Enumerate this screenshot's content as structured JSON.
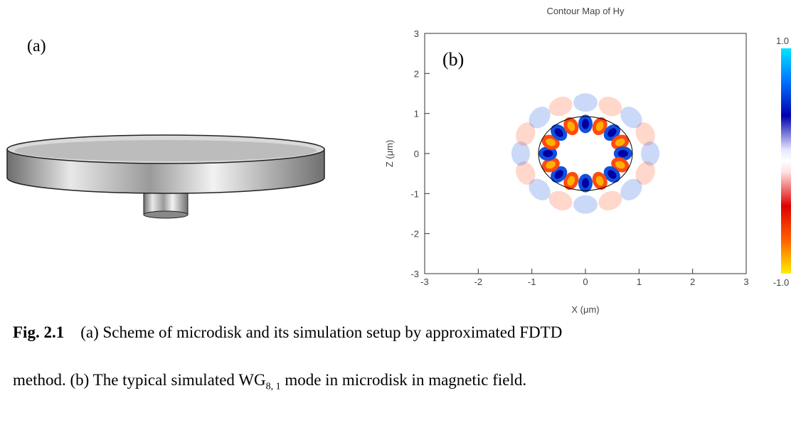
{
  "panel_a": {
    "label": "(a)"
  },
  "panel_b": {
    "label": "(b)",
    "title": "Contour Map of Hy",
    "x_label": "X (μm)",
    "y_label": "Z (μm)",
    "xlim": [
      -3,
      3
    ],
    "ylim": [
      -3,
      3
    ],
    "xticks": [
      -3,
      -2,
      -1,
      0,
      1,
      2,
      3
    ],
    "yticks": [
      -3,
      -2,
      -1,
      0,
      1,
      2,
      3
    ],
    "colorbar": {
      "max": "1.0",
      "min": "-1.0"
    }
  },
  "caption": {
    "fig": "Fig. 2.1",
    "line1": "(a) Scheme of microdisk and its simulation setup by approximated FDTD",
    "line2_start": "method. (b) The typical simulated WG",
    "line2_sub": "8, 1",
    "line2_end": " mode in microdisk in magnetic field."
  }
}
